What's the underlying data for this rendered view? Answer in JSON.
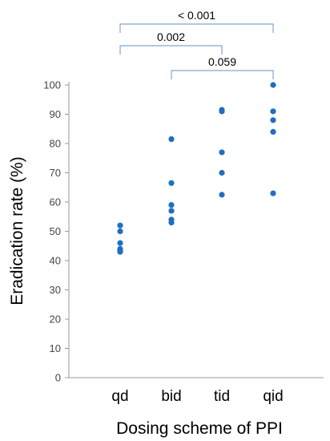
{
  "chart_data": {
    "type": "scatter",
    "categories": [
      "qd",
      "bid",
      "tid",
      "qid"
    ],
    "series": [
      {
        "values": [
          [
            52,
            50,
            46,
            44,
            43.5,
            43
          ],
          [
            81.5,
            66.5,
            59,
            57,
            54,
            53
          ],
          [
            91.5,
            91,
            77,
            70,
            62.5
          ],
          [
            100,
            91,
            88,
            84,
            63
          ]
        ]
      }
    ],
    "xlabel": "Dosing scheme of PPI",
    "ylabel": "Eradication rate (%)",
    "ylim": [
      0,
      100
    ],
    "yticks": [
      0,
      10,
      20,
      30,
      40,
      50,
      60,
      70,
      80,
      90,
      100
    ],
    "grid": false,
    "color": "#1f6fc0",
    "bracket_color": "#7fa7cf",
    "annotations": [
      {
        "from": "qd",
        "to": "qid",
        "label": "< 0.001"
      },
      {
        "from": "qd",
        "to": "tid",
        "label": "0.002"
      },
      {
        "from": "bid",
        "to": "qid",
        "label": "0.059"
      }
    ]
  }
}
